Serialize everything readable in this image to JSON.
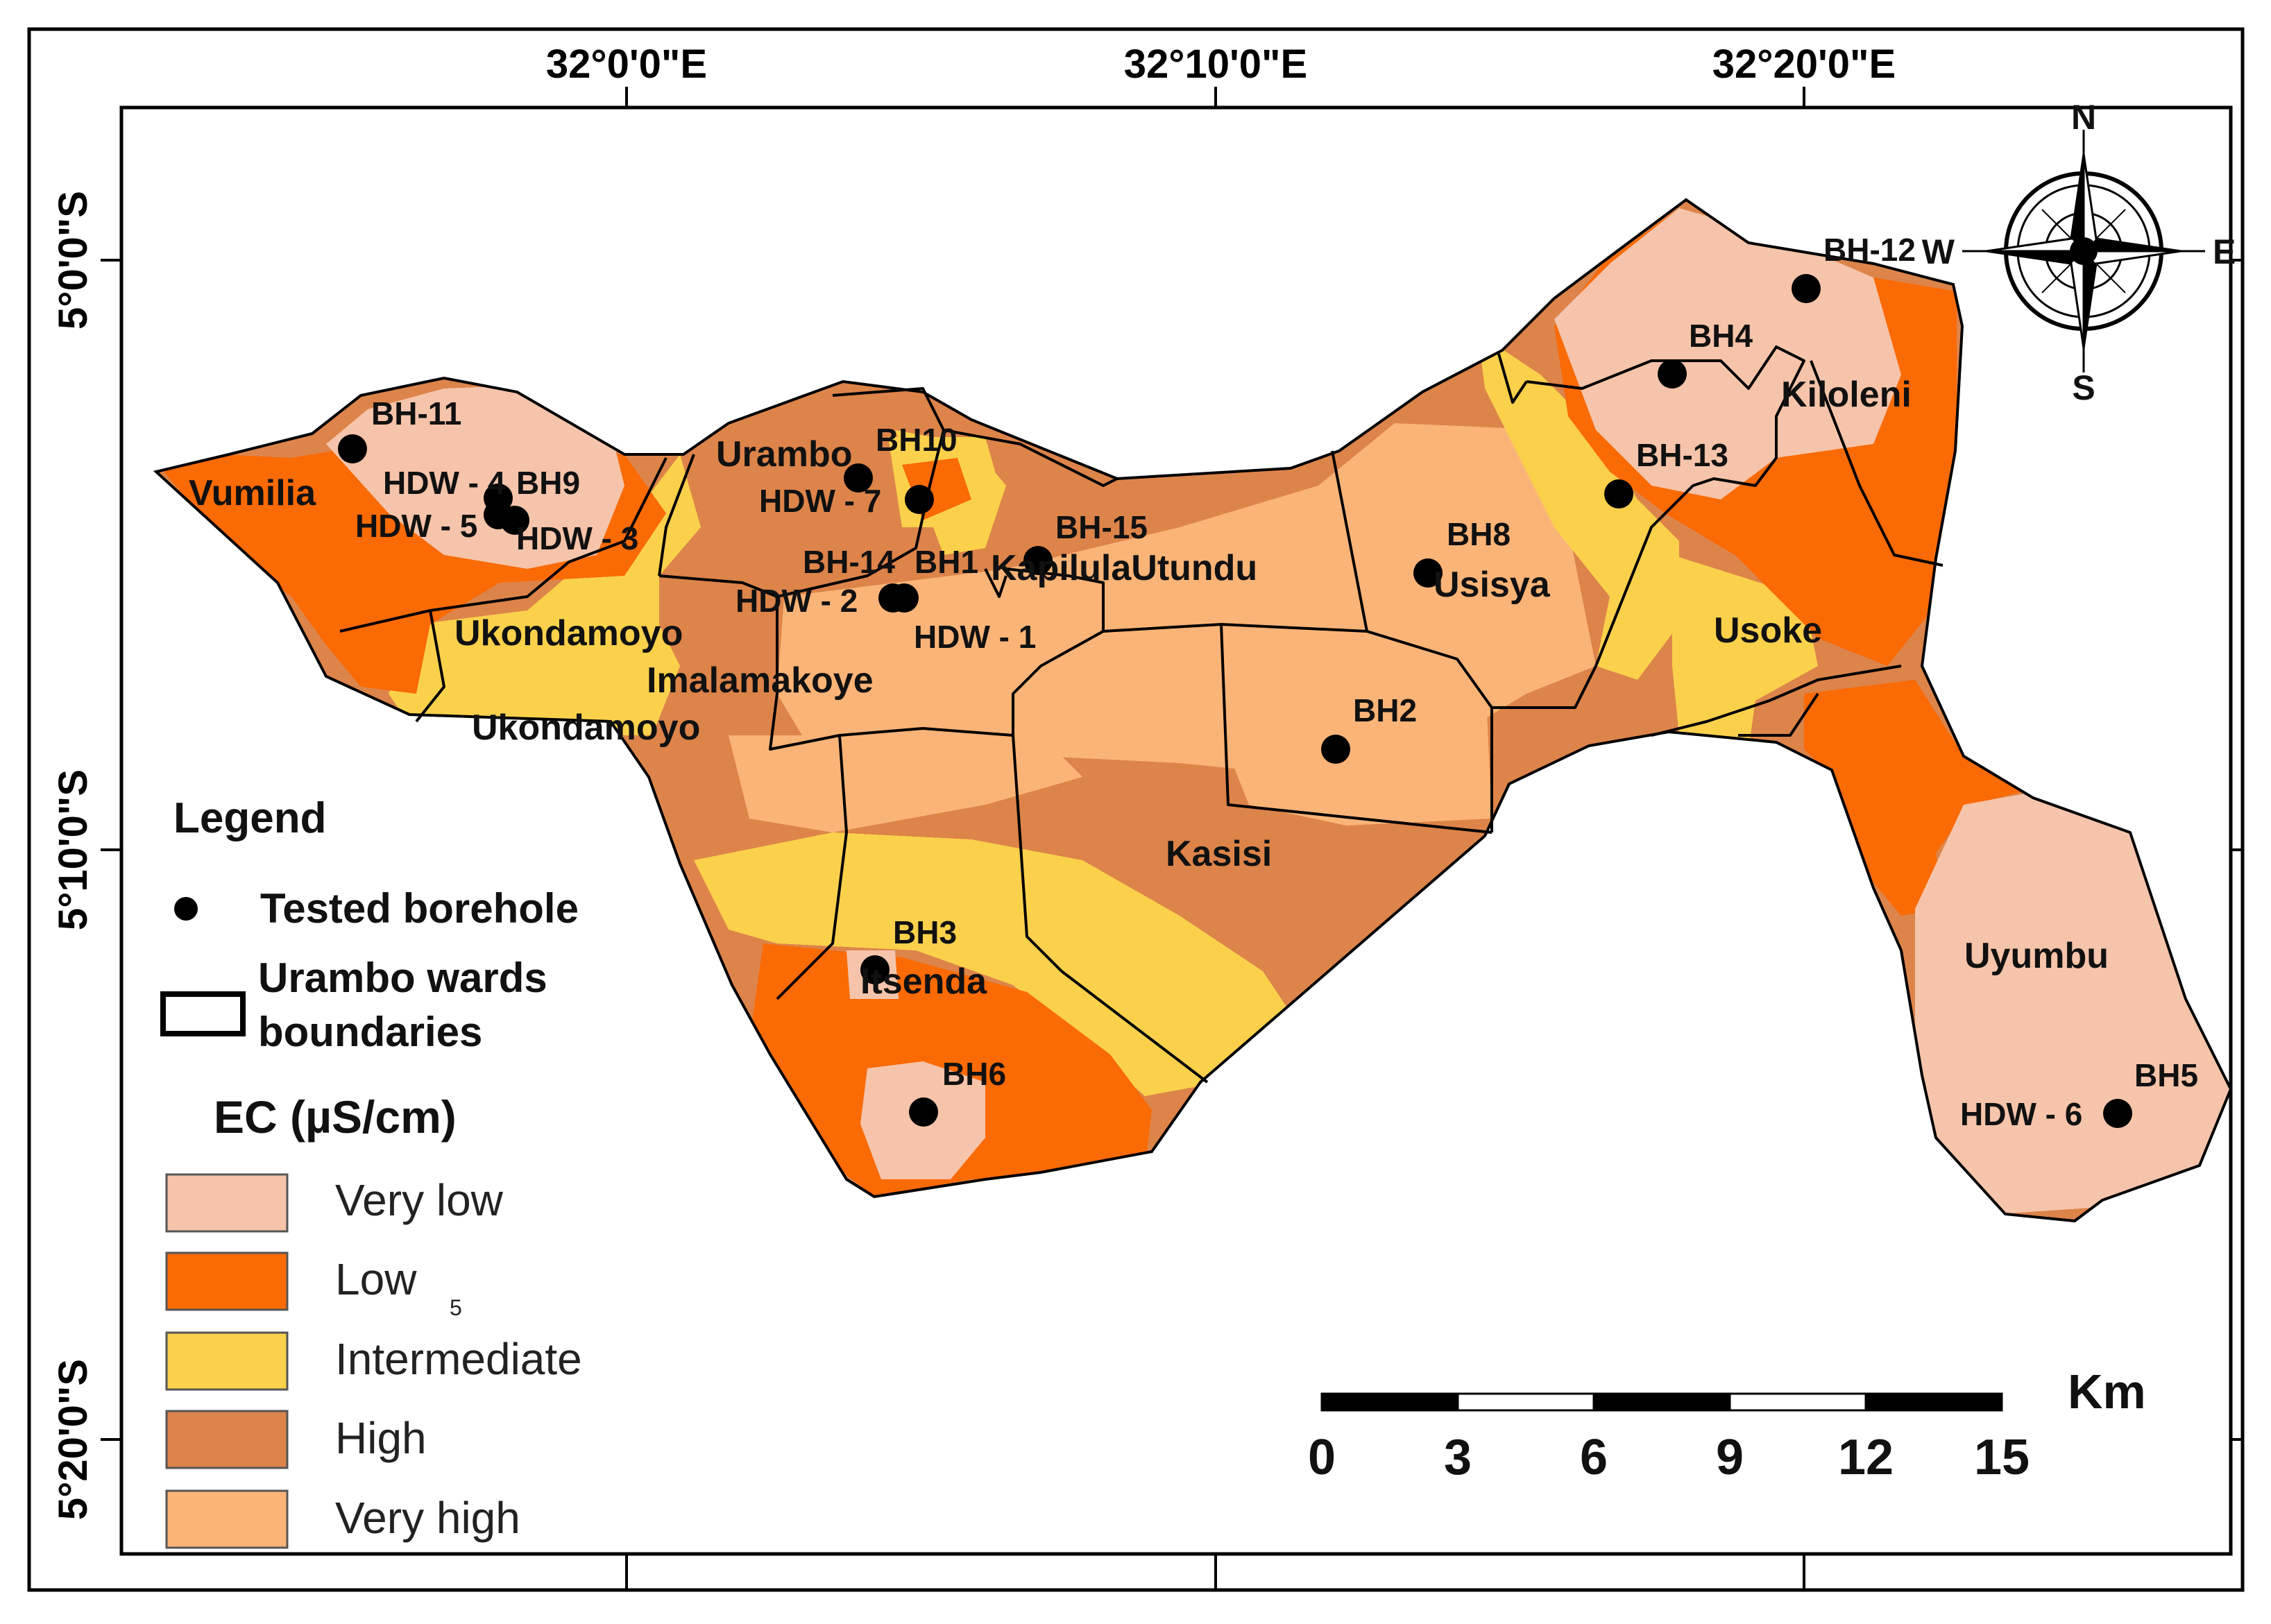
{
  "map": {
    "graticule": {
      "longitude_labels": [
        "32°0'0\"E",
        "32°10'0\"E",
        "32°20'0\"E"
      ],
      "latitude_labels": [
        "5°0'0\"S",
        "5°10'0\"S",
        "5°20'0\"S"
      ]
    },
    "north_arrow": {
      "n": "N",
      "s": "S",
      "e": "E",
      "w": "W"
    },
    "wards": [
      "Vumilia",
      "Urambo",
      "Ukondamoyo",
      "Imalamakoye",
      "Ukondamoyo",
      "KapilulaUtundu",
      "Usisya",
      "Kiloleni",
      "Usoke",
      "Kasisi",
      "Itsenda",
      "Uyumbu"
    ],
    "boreholes": [
      "BH-11",
      "HDW - 4",
      "BH9",
      "HDW - 5",
      "HDW - 3",
      "BH10",
      "HDW - 7",
      "BH-15",
      "BH-14",
      "BH1",
      "HDW - 2",
      "HDW - 1",
      "BH8",
      "BH2",
      "BH-12",
      "BH4",
      "BH-13",
      "BH3",
      "BH6",
      "BH5",
      "HDW - 6"
    ],
    "scale_bar": {
      "unit": "Km",
      "ticks": [
        "0",
        "3",
        "6",
        "9",
        "12",
        "15"
      ]
    },
    "class_colors": {
      "very_low": "#f5c4aa",
      "low": "#fa6a05",
      "intermediate": "#fbd14b",
      "high": "#dd844a",
      "very_high": "#fbb477"
    }
  },
  "legend": {
    "title": "Legend",
    "tested_borehole": "Tested borehole",
    "wards_line1": "Urambo wards",
    "wards_line2": "boundaries",
    "ec_title": "EC (µS/cm)",
    "classes": [
      "Very low",
      "Low",
      "Intermediate",
      "High",
      "Very high"
    ],
    "stray_mark": "5"
  }
}
